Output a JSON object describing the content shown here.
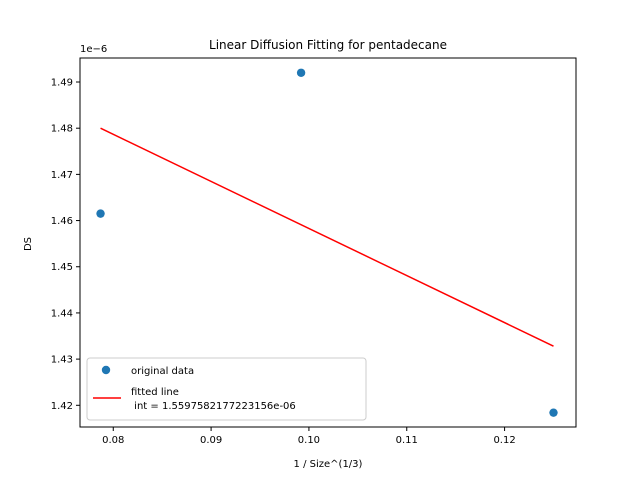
{
  "chart_data": {
    "type": "scatter",
    "title": "Linear Diffusion Fitting for pentadecane",
    "xlabel": "1 / Size^(1/3)",
    "ylabel": "DS",
    "y_offset_label": "1e−6",
    "xlim": [
      0.0766,
      0.1273
    ],
    "ylim": [
      1.4153,
      1.4952
    ],
    "x_ticks": [
      0.08,
      0.09,
      0.1,
      0.11,
      0.12
    ],
    "x_tick_labels": [
      "0.08",
      "0.09",
      "0.10",
      "0.11",
      "0.12"
    ],
    "y_ticks": [
      1.42,
      1.43,
      1.44,
      1.45,
      1.46,
      1.47,
      1.48,
      1.49
    ],
    "y_tick_labels": [
      "1.42",
      "1.43",
      "1.44",
      "1.45",
      "1.46",
      "1.47",
      "1.48",
      "1.49"
    ],
    "grid": false,
    "legend_position": "lower-left",
    "series": [
      {
        "name": "original data",
        "kind": "scatter",
        "color": "#1f77b4",
        "x": [
          0.0787,
          0.0992,
          0.125
        ],
        "y": [
          1.4615,
          1.492,
          1.4184
        ]
      },
      {
        "name": "fitted line\n int = 1.5597582177223156e-06",
        "kind": "line",
        "color": "#ff0000",
        "x": [
          0.0787,
          0.125
        ],
        "y": [
          1.48,
          1.4328
        ]
      }
    ]
  }
}
